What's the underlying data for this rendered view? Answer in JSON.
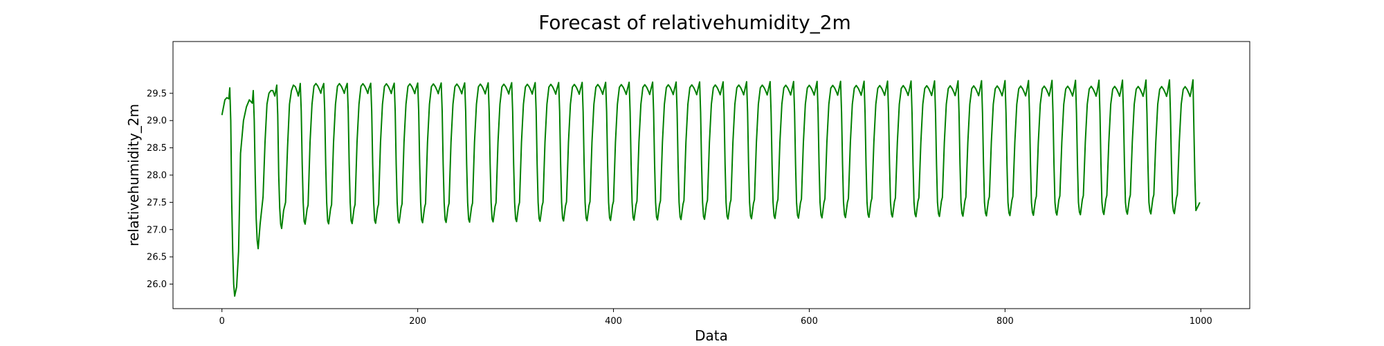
{
  "chart_data": {
    "type": "line",
    "title": "Forecast of relativehumidity_2m",
    "xlabel": "Data",
    "ylabel": "relativehumidity_2m",
    "xlim": [
      -50,
      1050
    ],
    "ylim": [
      25.55,
      30.45
    ],
    "x_ticks": [
      0,
      200,
      400,
      600,
      800,
      1000
    ],
    "x_tick_labels": [
      "0",
      "200",
      "400",
      "600",
      "800",
      "1000"
    ],
    "y_ticks": [
      26.0,
      26.5,
      27.0,
      27.5,
      28.0,
      28.5,
      29.0,
      29.5
    ],
    "y_tick_labels": [
      "26.0",
      "26.5",
      "27.0",
      "27.5",
      "28.0",
      "28.5",
      "29.0",
      "29.5"
    ],
    "grid": false,
    "legend": "none",
    "series": [
      {
        "color": "#008000",
        "x_start": 0,
        "x_end": 999,
        "period": 24,
        "points": [
          [
            0,
            29.1
          ],
          [
            3,
            29.38
          ],
          [
            5,
            29.42
          ],
          [
            7,
            29.4
          ],
          [
            8,
            29.6
          ],
          [
            9,
            29.0
          ],
          [
            10,
            27.5
          ],
          [
            11,
            26.6
          ],
          [
            12,
            26.0
          ],
          [
            13,
            25.78
          ],
          [
            15,
            25.95
          ],
          [
            17,
            26.6
          ],
          [
            19,
            28.4
          ],
          [
            22,
            29.0
          ],
          [
            25,
            29.25
          ],
          [
            28,
            29.38
          ],
          [
            31,
            29.32
          ],
          [
            32,
            29.55
          ],
          [
            33,
            29.0
          ],
          [
            34,
            28.0
          ],
          [
            35,
            27.2
          ],
          [
            36,
            26.8
          ],
          [
            37,
            26.65
          ],
          [
            39,
            27.1
          ],
          [
            42,
            27.6
          ],
          [
            44,
            28.6
          ],
          [
            46,
            29.3
          ],
          [
            48,
            29.5
          ],
          [
            50,
            29.55
          ],
          [
            52,
            29.55
          ],
          [
            54,
            29.45
          ],
          [
            56,
            29.65
          ],
          [
            57,
            29.1
          ],
          [
            58,
            28.0
          ],
          [
            59,
            27.4
          ],
          [
            60,
            27.1
          ],
          [
            61,
            27.02
          ],
          [
            63,
            27.35
          ],
          [
            65,
            27.5
          ],
          [
            67,
            28.5
          ],
          [
            69,
            29.3
          ],
          [
            71,
            29.55
          ],
          [
            73,
            29.65
          ],
          [
            75,
            29.62
          ],
          [
            77,
            29.52
          ],
          [
            78,
            29.45
          ],
          [
            79,
            29.55
          ],
          [
            80,
            29.68
          ]
        ],
        "steady_state": {
          "min_start": 27.1,
          "min_end": 27.3,
          "peak_start": 29.68,
          "peak_end": 29.62,
          "spike_start": 29.68,
          "spike_end": 29.75
        },
        "last_point": [
          999,
          27.5
        ]
      }
    ]
  }
}
